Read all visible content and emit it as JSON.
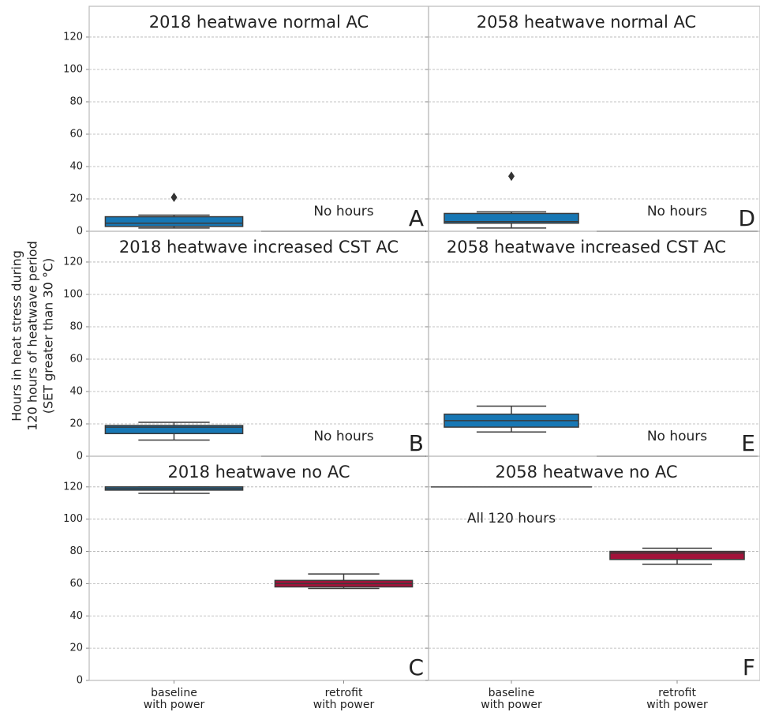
{
  "chart_data": [
    {
      "type": "box",
      "title": "2018 heatwave normal AC",
      "panel_label": "A",
      "ylim": [
        0,
        139
      ],
      "yticks": [
        0,
        20,
        40,
        60,
        80,
        100,
        120
      ],
      "grid": true,
      "boxes": [
        {
          "low": 2,
          "q1": 3,
          "median": 5,
          "q3": 9,
          "high": 10,
          "outliers": [
            21
          ],
          "color": "#1777b4"
        },
        {
          "median": 0,
          "label": "No hours"
        }
      ]
    },
    {
      "type": "box",
      "title": "2018 heatwave increased CST AC",
      "panel_label": "B",
      "ylabel": [
        "Hours in heat stress during",
        "120 hours of heatwave period",
        "(SET greater than 30 °C)"
      ],
      "ylim": [
        0,
        139
      ],
      "yticks": [
        0,
        20,
        40,
        60,
        80,
        100,
        120
      ],
      "grid": true,
      "boxes": [
        {
          "low": 10,
          "q1": 14,
          "median": 18,
          "q3": 19,
          "high": 21,
          "outliers": [],
          "color": "#1777b4"
        },
        {
          "median": 0,
          "label": "No hours"
        }
      ]
    },
    {
      "type": "box",
      "title": "2018 heatwave no AC",
      "panel_label": "C",
      "categories": [
        [
          "baseline",
          "with power"
        ],
        [
          "retrofit",
          "with power"
        ]
      ],
      "ylim": [
        0,
        139
      ],
      "yticks": [
        0,
        20,
        40,
        60,
        80,
        100,
        120
      ],
      "grid": true,
      "boxes": [
        {
          "low": 116,
          "q1": 118,
          "median": 119,
          "q3": 120,
          "high": 120,
          "outliers": [],
          "color": "#1777b4"
        },
        {
          "low": 57,
          "q1": 58,
          "median": 60,
          "q3": 62,
          "high": 66,
          "outliers": [],
          "color": "#a3123a"
        }
      ]
    },
    {
      "type": "box",
      "title": "2058 heatwave normal AC",
      "panel_label": "D",
      "ylim": [
        0,
        139
      ],
      "yticks": [
        0,
        20,
        40,
        60,
        80,
        100,
        120
      ],
      "grid": true,
      "boxes": [
        {
          "low": 2,
          "q1": 5,
          "median": 6,
          "q3": 11,
          "high": 12,
          "outliers": [
            34
          ],
          "color": "#1777b4"
        },
        {
          "median": 0,
          "label": "No hours"
        }
      ]
    },
    {
      "type": "box",
      "title": "2058 heatwave increased CST AC",
      "panel_label": "E",
      "ylim": [
        0,
        139
      ],
      "yticks": [
        0,
        20,
        40,
        60,
        80,
        100,
        120
      ],
      "grid": true,
      "boxes": [
        {
          "low": 15,
          "q1": 18,
          "median": 22,
          "q3": 26,
          "high": 31,
          "outliers": [],
          "color": "#1777b4"
        },
        {
          "median": 0,
          "label": "No hours"
        }
      ]
    },
    {
      "type": "box",
      "title": "2058 heatwave no AC",
      "panel_label": "F",
      "categories": [
        [
          "baseline",
          "with power"
        ],
        [
          "retrofit",
          "with power"
        ]
      ],
      "ylim": [
        0,
        139
      ],
      "yticks": [
        0,
        20,
        40,
        60,
        80,
        100,
        120
      ],
      "grid": true,
      "boxes": [
        {
          "median": 120,
          "label": "All 120 hours"
        },
        {
          "low": 72,
          "q1": 75,
          "median": 79,
          "q3": 80,
          "high": 82,
          "outliers": [],
          "color": "#a3123a"
        }
      ]
    }
  ]
}
